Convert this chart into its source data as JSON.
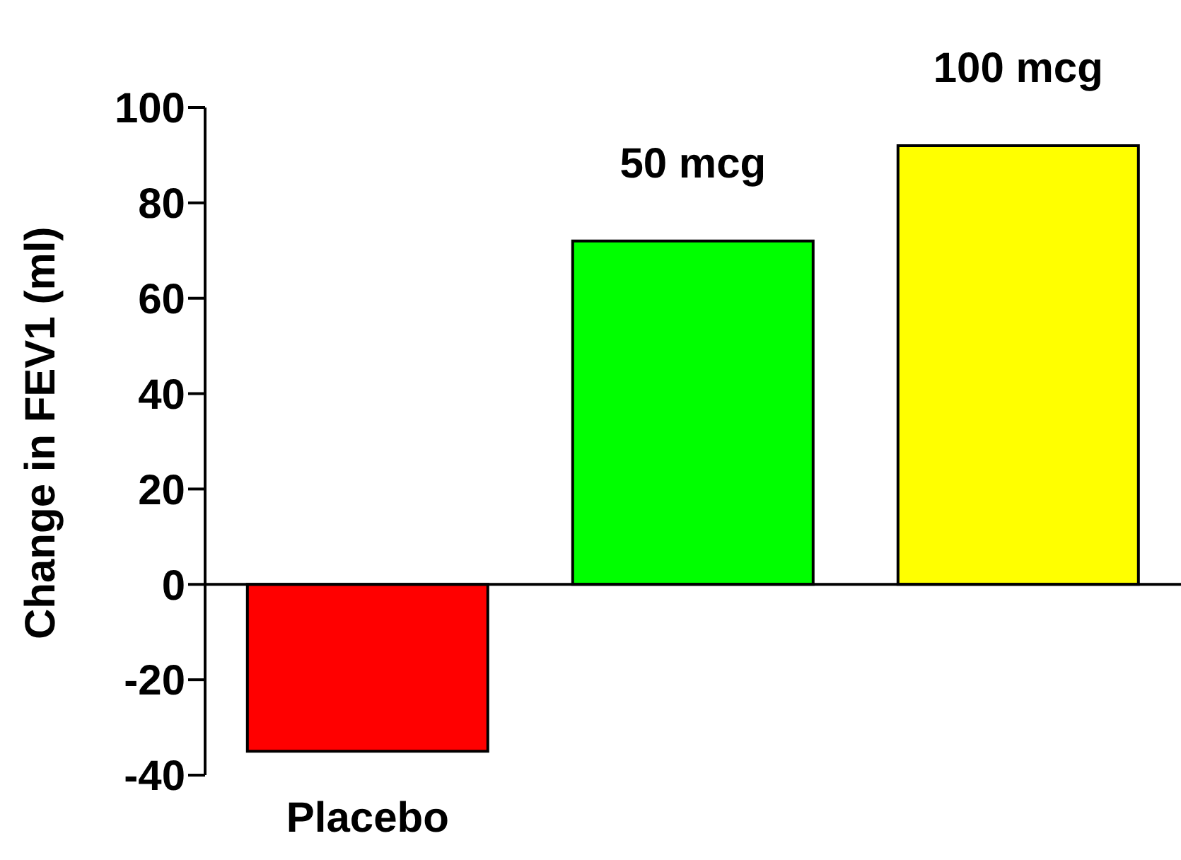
{
  "chart_data": {
    "type": "bar",
    "ylabel": "Change in FEV1 (ml)",
    "categories": [
      "Placebo",
      "50 mcg",
      "100 mcg"
    ],
    "values": [
      -35,
      72,
      92
    ],
    "colors": [
      "#ff0000",
      "#00ff00",
      "#ffff00"
    ],
    "ylim": [
      -40,
      100
    ],
    "yticks": [
      -40,
      -20,
      0,
      20,
      40,
      60,
      80,
      100
    ],
    "legend": false
  }
}
